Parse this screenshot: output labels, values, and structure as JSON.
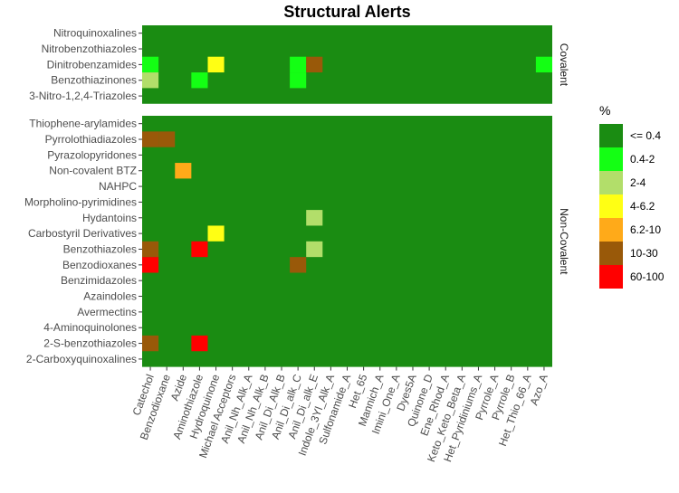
{
  "chart_data": {
    "type": "heatmap",
    "title": "Structural Alerts",
    "xlabel": "",
    "ylabel": "",
    "x_categories": [
      "Catechol",
      "Benzodioxane",
      "Azide",
      "Aminothiazole",
      "Hydroquinone",
      "Michael Acceptors",
      "Anil_Nh_Alk_A",
      "Anil_Nh_Alk_B",
      "Anil_Di_Alk_B",
      "Anil_Di_alk_C",
      "Anil_Di_alk_E",
      "Indole_3Yl_Alk_A",
      "Sulfonamide_A",
      "Het_65",
      "Mannich_A",
      "Imini_One_A",
      "Dyes5A",
      "Quinone_D",
      "Ene_Rhod_A",
      "Keto_Keto_Beta_A",
      "Het_Pyridiniums_A",
      "Pyrrole_A",
      "Pyrrole_B",
      "Het_Thio_66_A",
      "Azo_A"
    ],
    "facets": [
      {
        "name": "Covalent",
        "rows": [
          "Nitroquinoxalines",
          "Nitrobenzothiazoles",
          "Dinitrobenzamides",
          "Benzothiazinones",
          "3-Nitro-1,2,4-Triazoles"
        ],
        "cells": [
          {
            "row": "Dinitrobenzamides",
            "col": "Catechol",
            "category": "0.4-2"
          },
          {
            "row": "Dinitrobenzamides",
            "col": "Hydroquinone",
            "category": "4-6.2"
          },
          {
            "row": "Dinitrobenzamides",
            "col": "Anil_Di_alk_C",
            "category": "0.4-2"
          },
          {
            "row": "Dinitrobenzamides",
            "col": "Anil_Di_alk_E",
            "category": "10-30"
          },
          {
            "row": "Dinitrobenzamides",
            "col": "Azo_A",
            "category": "0.4-2"
          },
          {
            "row": "Benzothiazinones",
            "col": "Catechol",
            "category": "2-4"
          },
          {
            "row": "Benzothiazinones",
            "col": "Aminothiazole",
            "category": "0.4-2"
          },
          {
            "row": "Benzothiazinones",
            "col": "Anil_Di_alk_C",
            "category": "0.4-2"
          }
        ]
      },
      {
        "name": "Non-Covalent",
        "rows": [
          "Thiophene-arylamides",
          "Pyrrolothiadiazoles",
          "Pyrazolopyridones",
          "Non-covalent BTZ",
          "NAHPC",
          "Morpholino-pyrimidines",
          "Hydantoins",
          "Carbostyril Derivatives",
          "Benzothiazoles",
          "Benzodioxanes",
          "Benzimidazoles",
          "Azaindoles",
          "Avermectins",
          "4-Aminoquinolones",
          "2-S-benzothiazoles",
          "2-Carboxyquinoxalines"
        ],
        "cells": [
          {
            "row": "Pyrrolothiadiazoles",
            "col": "Catechol",
            "category": "10-30"
          },
          {
            "row": "Pyrrolothiadiazoles",
            "col": "Benzodioxane",
            "category": "10-30"
          },
          {
            "row": "Non-covalent BTZ",
            "col": "Azide",
            "category": "6.2-10"
          },
          {
            "row": "Hydantoins",
            "col": "Anil_Di_alk_E",
            "category": "2-4"
          },
          {
            "row": "Carbostyril Derivatives",
            "col": "Hydroquinone",
            "category": "4-6.2"
          },
          {
            "row": "Benzothiazoles",
            "col": "Catechol",
            "category": "10-30"
          },
          {
            "row": "Benzothiazoles",
            "col": "Aminothiazole",
            "category": "60-100"
          },
          {
            "row": "Benzothiazoles",
            "col": "Anil_Di_alk_E",
            "category": "2-4"
          },
          {
            "row": "Benzodioxanes",
            "col": "Catechol",
            "category": "60-100"
          },
          {
            "row": "Benzodioxanes",
            "col": "Anil_Di_alk_C",
            "category": "10-30"
          },
          {
            "row": "2-S-benzothiazoles",
            "col": "Catechol",
            "category": "10-30"
          },
          {
            "row": "2-S-benzothiazoles",
            "col": "Aminothiazole",
            "category": "60-100"
          }
        ]
      }
    ],
    "default_category": "<= 0.4",
    "legend": {
      "title": "%",
      "position": "right",
      "items": [
        {
          "label": "<= 0.4",
          "color": "#1a8c12"
        },
        {
          "label": "0.4-2",
          "color": "#14ff14"
        },
        {
          "label": "2-4",
          "color": "#b2de6a"
        },
        {
          "label": "4-6.2",
          "color": "#ffff14"
        },
        {
          "label": "6.2-10",
          "color": "#ffaa19"
        },
        {
          "label": "10-30",
          "color": "#995909"
        },
        {
          "label": "60-100",
          "color": "#ff0000"
        }
      ]
    }
  }
}
